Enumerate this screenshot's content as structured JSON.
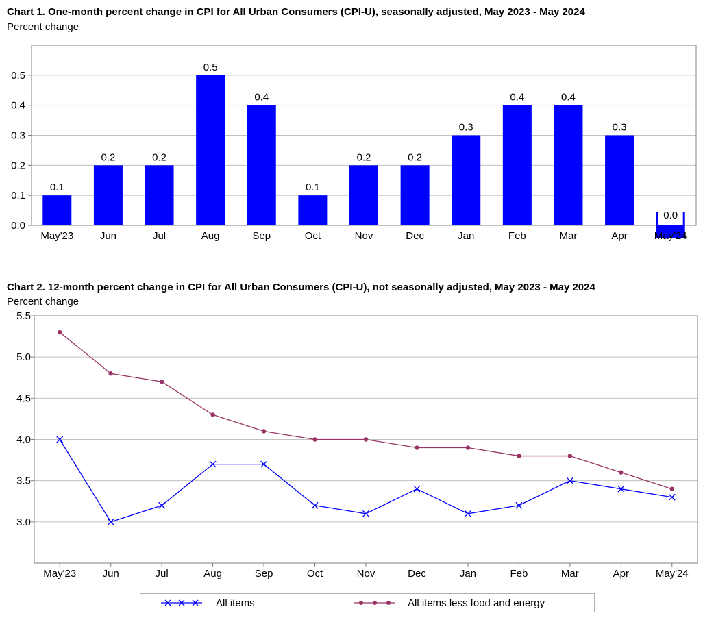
{
  "chart_data": [
    {
      "type": "bar",
      "title": "Chart 1. One-month percent change in CPI for All Urban Consumers (CPI-U), seasonally adjusted, May 2023 - May 2024",
      "subtitle": "Percent change",
      "categories": [
        "May'23",
        "Jun",
        "Jul",
        "Aug",
        "Sep",
        "Oct",
        "Nov",
        "Dec",
        "Jan",
        "Feb",
        "Mar",
        "Apr",
        "May'24"
      ],
      "values": [
        0.1,
        0.2,
        0.2,
        0.5,
        0.4,
        0.1,
        0.2,
        0.2,
        0.3,
        0.4,
        0.4,
        0.3,
        0.0
      ],
      "value_labels": [
        "0.1",
        "0.2",
        "0.2",
        "0.5",
        "0.4",
        "0.1",
        "0.2",
        "0.2",
        "0.3",
        "0.4",
        "0.4",
        "0.3",
        "0.0"
      ],
      "ylim": [
        0,
        0.6
      ],
      "yticks": [
        "0.0",
        "0.1",
        "0.2",
        "0.3",
        "0.4",
        "0.5"
      ],
      "grid": true,
      "bar_color": "#0000ff"
    },
    {
      "type": "line",
      "title": "Chart 2. 12-month percent change in CPI for All Urban Consumers (CPI-U), not seasonally adjusted, May 2023 - May 2024",
      "subtitle": "Percent change",
      "categories": [
        "May'23",
        "Jun",
        "Jul",
        "Aug",
        "Sep",
        "Oct",
        "Nov",
        "Dec",
        "Jan",
        "Feb",
        "Mar",
        "Apr",
        "May'24"
      ],
      "series": [
        {
          "name": "All items",
          "values": [
            4.0,
            3.0,
            3.2,
            3.7,
            3.7,
            3.2,
            3.1,
            3.4,
            3.1,
            3.2,
            3.5,
            3.4,
            3.3
          ],
          "color": "#0000ff",
          "marker": "x"
        },
        {
          "name": "All items less food and energy",
          "values": [
            5.3,
            4.8,
            4.7,
            4.3,
            4.1,
            4.0,
            4.0,
            3.9,
            3.9,
            3.8,
            3.8,
            3.6,
            3.4
          ],
          "color": "#993366",
          "marker": "dot"
        }
      ],
      "ylim": [
        2.5,
        5.5
      ],
      "yticks": [
        "3.0",
        "3.5",
        "4.0",
        "4.5",
        "5.0",
        "5.5"
      ],
      "grid": true,
      "legend_position": "bottom"
    }
  ]
}
